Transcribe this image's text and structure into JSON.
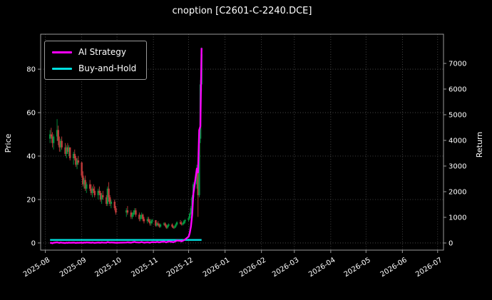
{
  "chart_data": {
    "type": "candlestick",
    "title": "cnoption [C2601-C-2240.DCE]",
    "left_axis": {
      "label": "Price",
      "ticks": [
        0,
        20,
        40,
        60,
        80
      ],
      "range": [
        -3.3,
        96.1
      ]
    },
    "right_axis": {
      "label": "Return",
      "ticks": [
        0,
        1000,
        2000,
        3000,
        4000,
        5000,
        6000,
        7000
      ],
      "range": [
        -278,
        8139
      ]
    },
    "x_axis": {
      "tick_labels": [
        "2025-08",
        "2025-09",
        "2025-10",
        "2025-11",
        "2025-12",
        "2026-01",
        "2026-02",
        "2026-03",
        "2026-04",
        "2026-05",
        "2026-06",
        "2026-07"
      ],
      "range": [
        "2025-07-28",
        "2026-07-06"
      ]
    },
    "legend": [
      {
        "label": "AI Strategy",
        "color": "#ff00ff"
      },
      {
        "label": "Buy-and-Hold",
        "color": "#00e0e0"
      }
    ],
    "colors": {
      "background": "#000000",
      "up": "#00963f",
      "down": "#c23b3b",
      "grid": "#555555",
      "text": "#ffffff",
      "spine": "#9a9a9a"
    },
    "grid": "dotted",
    "legend_position": "upper-left",
    "columns": [
      "date",
      "open",
      "high",
      "low",
      "close",
      "ai_strategy_return",
      "buy_and_hold_return"
    ],
    "rows": [
      [
        "2025-08-05",
        48,
        52,
        46,
        50,
        0,
        120
      ],
      [
        "2025-08-06",
        50,
        53,
        48,
        49,
        5,
        120
      ],
      [
        "2025-08-07",
        49,
        51,
        44,
        46,
        -10,
        120
      ],
      [
        "2025-08-08",
        46,
        50,
        43,
        49,
        8,
        120
      ],
      [
        "2025-08-11",
        49,
        57,
        47,
        52,
        25,
        120
      ],
      [
        "2025-08-12",
        52,
        54,
        45,
        47,
        15,
        120
      ],
      [
        "2025-08-13",
        47,
        49,
        42,
        44,
        5,
        120
      ],
      [
        "2025-08-14",
        44,
        48,
        42,
        47,
        18,
        120
      ],
      [
        "2025-08-15",
        47,
        49,
        43,
        44,
        10,
        120
      ],
      [
        "2025-08-18",
        44,
        46,
        40,
        41,
        0,
        120
      ],
      [
        "2025-08-19",
        41,
        45,
        39,
        44,
        12,
        120
      ],
      [
        "2025-08-20",
        44,
        46,
        41,
        42,
        6,
        120
      ],
      [
        "2025-08-21",
        42,
        45,
        40,
        44,
        16,
        120
      ],
      [
        "2025-08-22",
        44,
        44,
        38,
        39,
        8,
        120
      ],
      [
        "2025-08-25",
        39,
        42,
        36,
        41,
        14,
        120
      ],
      [
        "2025-08-26",
        41,
        43,
        38,
        39,
        10,
        120
      ],
      [
        "2025-08-27",
        39,
        40,
        35,
        36,
        2,
        120
      ],
      [
        "2025-08-28",
        36,
        39,
        34,
        38,
        12,
        120
      ],
      [
        "2025-08-29",
        38,
        40,
        36,
        37,
        8,
        120
      ],
      [
        "2025-09-01",
        37,
        37.5,
        30,
        31,
        15,
        120
      ],
      [
        "2025-09-02",
        31,
        33,
        26,
        27,
        5,
        120
      ],
      [
        "2025-09-03",
        27,
        30,
        25,
        29,
        20,
        120
      ],
      [
        "2025-09-04",
        29,
        31,
        24,
        25,
        10,
        120
      ],
      [
        "2025-09-05",
        25,
        28,
        23,
        27,
        22,
        120
      ],
      [
        "2025-09-08",
        27,
        29,
        24,
        25,
        14,
        120
      ],
      [
        "2025-09-09",
        25,
        27,
        22,
        23,
        8,
        120
      ],
      [
        "2025-09-10",
        23,
        26,
        21,
        25,
        18,
        120
      ],
      [
        "2025-09-11",
        25,
        27,
        23,
        24,
        12,
        120
      ],
      [
        "2025-09-12",
        24,
        26,
        21,
        22,
        6,
        120
      ],
      [
        "2025-09-15",
        22,
        25,
        20,
        24,
        20,
        120
      ],
      [
        "2025-09-16",
        24,
        26,
        22,
        23,
        15,
        120
      ],
      [
        "2025-09-17",
        23,
        24,
        19,
        20,
        8,
        120
      ],
      [
        "2025-09-18",
        20,
        23,
        18,
        22,
        22,
        120
      ],
      [
        "2025-09-19",
        22,
        24,
        20,
        21,
        16,
        120
      ],
      [
        "2025-09-22",
        21,
        22,
        17,
        18,
        10,
        120
      ],
      [
        "2025-09-23",
        18,
        26,
        17,
        25,
        35,
        120
      ],
      [
        "2025-09-24",
        25,
        28,
        19,
        21,
        25,
        120
      ],
      [
        "2025-09-25",
        21,
        22,
        17,
        18,
        15,
        120
      ],
      [
        "2025-09-26",
        18,
        20,
        16,
        19,
        22,
        120
      ],
      [
        "2025-09-29",
        19,
        20,
        15,
        16,
        14,
        120
      ],
      [
        "2025-09-30",
        16,
        17,
        13,
        14,
        8,
        120
      ],
      [
        "2025-10-09",
        14,
        16,
        12,
        15,
        20,
        120
      ],
      [
        "2025-10-10",
        15,
        17,
        13,
        14,
        28,
        120
      ],
      [
        "2025-10-13",
        14,
        15,
        11,
        12,
        15,
        120
      ],
      [
        "2025-10-14",
        12,
        14,
        11,
        13,
        25,
        120
      ],
      [
        "2025-10-15",
        13,
        15,
        12,
        14,
        35,
        120
      ],
      [
        "2025-10-16",
        14,
        16,
        13,
        15,
        45,
        120
      ],
      [
        "2025-10-17",
        15,
        16,
        12,
        13,
        30,
        120
      ],
      [
        "2025-10-20",
        13,
        14,
        10,
        11,
        18,
        120
      ],
      [
        "2025-10-21",
        11,
        13,
        10,
        12,
        28,
        120
      ],
      [
        "2025-10-22",
        12,
        14,
        11,
        13,
        38,
        120
      ],
      [
        "2025-10-23",
        13,
        13.5,
        10,
        11,
        25,
        120
      ],
      [
        "2025-10-24",
        11,
        12,
        9,
        10,
        15,
        120
      ],
      [
        "2025-10-27",
        10,
        12,
        9,
        11,
        30,
        120
      ],
      [
        "2025-10-28",
        11,
        12,
        9.5,
        10,
        22,
        120
      ],
      [
        "2025-10-29",
        10,
        11,
        8,
        9,
        12,
        120
      ],
      [
        "2025-10-30",
        9,
        11,
        8,
        10,
        28,
        120
      ],
      [
        "2025-10-31",
        10,
        11,
        9,
        10.5,
        35,
        120
      ],
      [
        "2025-11-03",
        10.5,
        10.5,
        7.5,
        8,
        30,
        120
      ],
      [
        "2025-11-04",
        8,
        9.5,
        7.5,
        9,
        45,
        120
      ],
      [
        "2025-11-05",
        9,
        10,
        8,
        8.5,
        38,
        120
      ],
      [
        "2025-11-06",
        8.5,
        9,
        7,
        7.5,
        25,
        120
      ],
      [
        "2025-11-07",
        7.5,
        9,
        7,
        8.5,
        40,
        120
      ],
      [
        "2025-11-10",
        8.5,
        9.5,
        8,
        9,
        55,
        120
      ],
      [
        "2025-11-11",
        9,
        9.5,
        7.5,
        8,
        42,
        120
      ],
      [
        "2025-11-12",
        8,
        8.5,
        6.5,
        7,
        28,
        120
      ],
      [
        "2025-11-13",
        7,
        8.5,
        6.5,
        8,
        48,
        120
      ],
      [
        "2025-11-14",
        8,
        9,
        7.5,
        8.5,
        60,
        120
      ],
      [
        "2025-11-17",
        8.5,
        9,
        7,
        7.5,
        45,
        120
      ],
      [
        "2025-11-18",
        7.5,
        8,
        6.5,
        7,
        32,
        120
      ],
      [
        "2025-11-19",
        7,
        8,
        6.5,
        7.5,
        50,
        120
      ],
      [
        "2025-11-20",
        7.5,
        9,
        7,
        8.5,
        70,
        120
      ],
      [
        "2025-11-21",
        8.5,
        10,
        8,
        9.5,
        95,
        120
      ],
      [
        "2025-11-24",
        9.5,
        10.5,
        8.5,
        9,
        80,
        120
      ],
      [
        "2025-11-25",
        9,
        10,
        8,
        8.5,
        65,
        120
      ],
      [
        "2025-11-26",
        8.5,
        9.5,
        8,
        9,
        85,
        120
      ],
      [
        "2025-11-27",
        9,
        10.5,
        8.5,
        10,
        110,
        120
      ],
      [
        "2025-11-28",
        10,
        11,
        9,
        10.5,
        140,
        120
      ],
      [
        "2025-12-01",
        10.5,
        12,
        10,
        11.5,
        250,
        120
      ],
      [
        "2025-12-02",
        11.5,
        14,
        11,
        13.5,
        400,
        120
      ],
      [
        "2025-12-03",
        13.5,
        17,
        13,
        16,
        650,
        120
      ],
      [
        "2025-12-04",
        16,
        22,
        12,
        21,
        1100,
        120
      ],
      [
        "2025-12-05",
        21,
        28,
        20,
        27,
        1900,
        120
      ],
      [
        "2025-12-08",
        27,
        36,
        25,
        34,
        2900,
        120
      ],
      [
        "2025-12-09",
        34,
        35,
        12,
        22,
        2750,
        120
      ],
      [
        "2025-12-10",
        22,
        50,
        21,
        48,
        4400,
        120
      ],
      [
        "2025-12-11",
        48,
        75,
        46,
        73,
        4550,
        120
      ],
      [
        "2025-12-12",
        73,
        90,
        70,
        87,
        7600,
        120
      ]
    ]
  }
}
